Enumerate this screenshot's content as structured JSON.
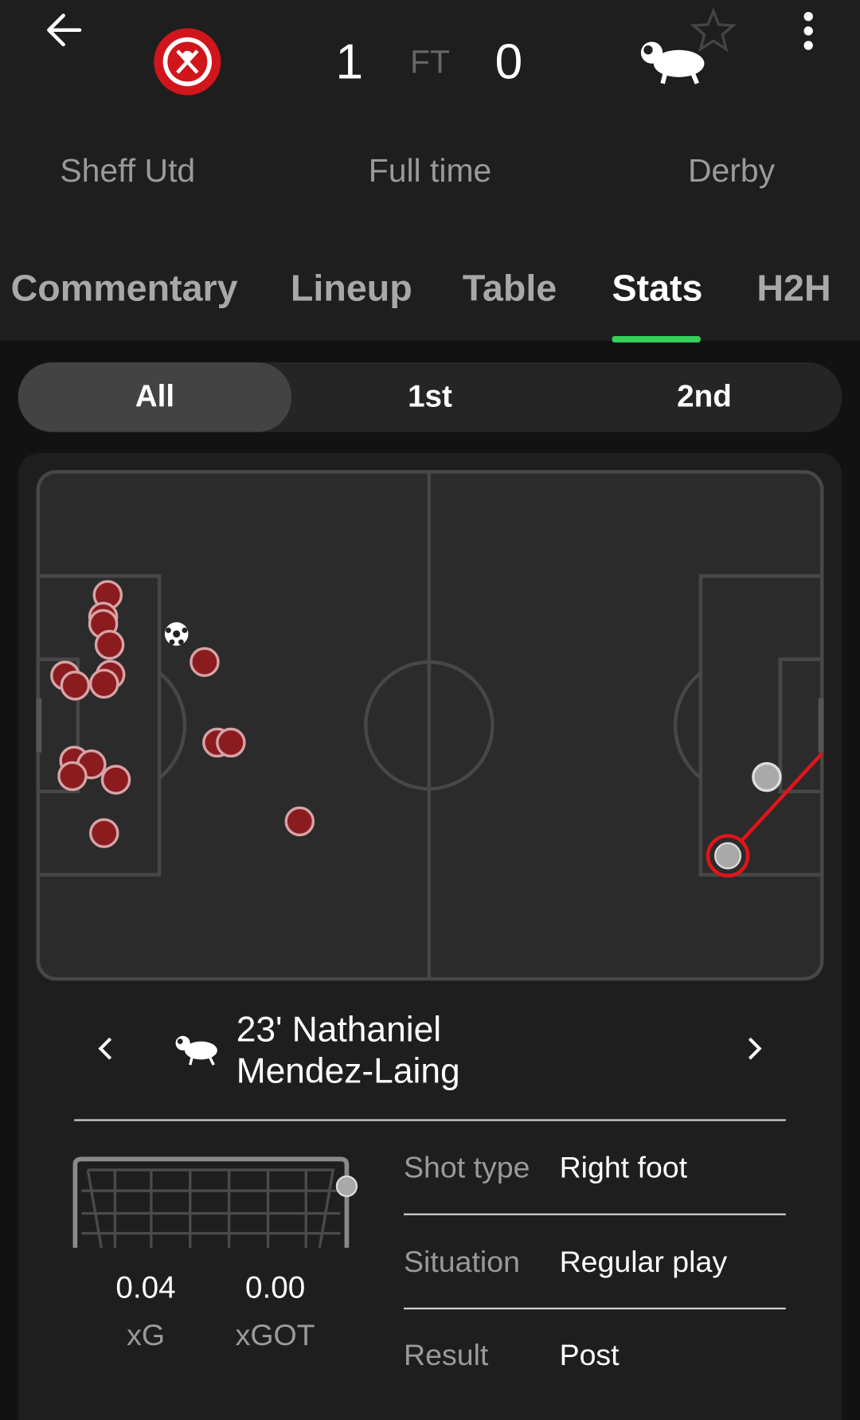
{
  "header": {
    "home_team": "Sheff Utd",
    "home_score": "1",
    "status_short": "FT",
    "away_score": "0",
    "away_team": "Derby",
    "status": "Full time"
  },
  "tabs": [
    "Commentary",
    "Lineup",
    "Table",
    "Stats",
    "H2H"
  ],
  "periods": [
    "All",
    "1st",
    "2nd"
  ],
  "shot": {
    "title_lines": [
      "23' Nathaniel",
      "Mendez-Laing"
    ],
    "xg": "0.04",
    "xg_label": "xG",
    "xgot": "0.00",
    "xgot_label": "xGOT",
    "details": [
      {
        "label": "Shot type",
        "value": "Right foot"
      },
      {
        "label": "Situation",
        "value": "Regular play"
      },
      {
        "label": "Result",
        "value": "Post"
      }
    ]
  }
}
